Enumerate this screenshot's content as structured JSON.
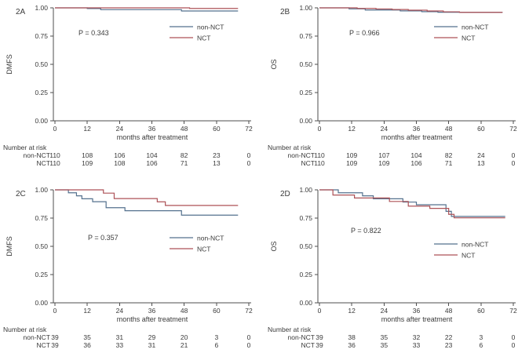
{
  "figure": {
    "background": "#ffffff",
    "text_color": "#3a3a3a",
    "axis_color": "#4d4d4d"
  },
  "colors": {
    "non_nct": "#54718e",
    "nct": "#ad5257"
  },
  "chart_data": [
    {
      "type": "line",
      "subtype": "kaplan-meier-step",
      "panel_label": "2A",
      "ylabel": "DMFS",
      "xlabel": "months after treatment",
      "p_value": "P = 0.343",
      "xlim": [
        0,
        72
      ],
      "ylim": [
        0.0,
        1.0
      ],
      "xticks": [
        0,
        12,
        24,
        36,
        48,
        60,
        72
      ],
      "ytick_labels": [
        "0.00",
        "0.25",
        "0.50",
        "0.75",
        "1.00"
      ],
      "grid": false,
      "legend_position": "upper-right",
      "legend": [
        {
          "name": "non-NCT",
          "color": "#54718e"
        },
        {
          "name": "NCT",
          "color": "#ad5257"
        }
      ],
      "series": [
        {
          "name": "non-NCT",
          "color": "#54718e",
          "points": [
            [
              0,
              1.0
            ],
            [
              12,
              0.994
            ],
            [
              17,
              0.984
            ],
            [
              47,
              0.972
            ],
            [
              68,
              0.972
            ]
          ]
        },
        {
          "name": "NCT",
          "color": "#ad5257",
          "points": [
            [
              0,
              1.0
            ],
            [
              50,
              0.995
            ],
            [
              68,
              0.995
            ]
          ]
        }
      ],
      "risk_table": {
        "title": "Number at risk",
        "timepoints": [
          0,
          12,
          24,
          36,
          48,
          60,
          72
        ],
        "rows": [
          {
            "name": "non-NCT",
            "values": [
              "110",
              "108",
              "106",
              "104",
              "82",
              "23",
              "0"
            ]
          },
          {
            "name": "NCT",
            "values": [
              "110",
              "109",
              "108",
              "106",
              "71",
              "13",
              "0"
            ]
          }
        ]
      }
    },
    {
      "type": "line",
      "subtype": "kaplan-meier-step",
      "panel_label": "2B",
      "ylabel": "OS",
      "xlabel": "months after treatment",
      "p_value": "P = 0.966",
      "xlim": [
        0,
        72
      ],
      "ylim": [
        0.0,
        1.0
      ],
      "xticks": [
        0,
        12,
        24,
        36,
        48,
        60,
        72
      ],
      "ytick_labels": [
        "0.00",
        "0.25",
        "0.50",
        "0.75",
        "1.00"
      ],
      "grid": false,
      "legend_position": "upper-right",
      "legend": [
        {
          "name": "non-NCT",
          "color": "#54718e"
        },
        {
          "name": "NCT",
          "color": "#ad5257"
        }
      ],
      "series": [
        {
          "name": "non-NCT",
          "color": "#54718e",
          "points": [
            [
              0,
              1.0
            ],
            [
              11,
              0.991
            ],
            [
              17,
              0.981
            ],
            [
              30,
              0.973
            ],
            [
              38,
              0.966
            ],
            [
              44,
              0.961
            ],
            [
              68,
              0.961
            ]
          ]
        },
        {
          "name": "NCT",
          "color": "#ad5257",
          "points": [
            [
              0,
              1.0
            ],
            [
              14,
              0.995
            ],
            [
              21,
              0.99
            ],
            [
              27,
              0.985
            ],
            [
              33,
              0.979
            ],
            [
              40,
              0.972
            ],
            [
              46,
              0.965
            ],
            [
              52,
              0.96
            ],
            [
              68,
              0.96
            ]
          ]
        }
      ],
      "risk_table": {
        "title": "Number at risk",
        "timepoints": [
          0,
          12,
          24,
          36,
          48,
          60,
          72
        ],
        "rows": [
          {
            "name": "non-NCT",
            "values": [
              "110",
              "109",
              "107",
              "104",
              "82",
              "24",
              "0"
            ]
          },
          {
            "name": "NCT",
            "values": [
              "110",
              "109",
              "109",
              "106",
              "71",
              "13",
              "0"
            ]
          }
        ]
      }
    },
    {
      "type": "line",
      "subtype": "kaplan-meier-step",
      "panel_label": "2C",
      "ylabel": "DMFS",
      "xlabel": "months after treatment",
      "p_value": "P = 0.357",
      "xlim": [
        0,
        72
      ],
      "ylim": [
        0.0,
        1.0
      ],
      "xticks": [
        0,
        12,
        24,
        36,
        48,
        60,
        72
      ],
      "ytick_labels": [
        "0.00",
        "0.25",
        "0.50",
        "0.75",
        "1.00"
      ],
      "grid": false,
      "legend_position": "middle-right",
      "legend": [
        {
          "name": "non-NCT",
          "color": "#54718e"
        },
        {
          "name": "NCT",
          "color": "#ad5257"
        }
      ],
      "series": [
        {
          "name": "non-NCT",
          "color": "#54718e",
          "points": [
            [
              0,
              1.0
            ],
            [
              5,
              0.974
            ],
            [
              8,
              0.947
            ],
            [
              10,
              0.921
            ],
            [
              14,
              0.895
            ],
            [
              19,
              0.842
            ],
            [
              26,
              0.815
            ],
            [
              47,
              0.776
            ],
            [
              68,
              0.776
            ]
          ]
        },
        {
          "name": "NCT",
          "color": "#ad5257",
          "points": [
            [
              0,
              1.0
            ],
            [
              18,
              0.971
            ],
            [
              22,
              0.923
            ],
            [
              38,
              0.894
            ],
            [
              41,
              0.862
            ],
            [
              68,
              0.862
            ]
          ]
        }
      ],
      "risk_table": {
        "title": "Number at risk",
        "timepoints": [
          0,
          12,
          24,
          36,
          48,
          60,
          72
        ],
        "rows": [
          {
            "name": "non-NCT",
            "values": [
              "39",
              "35",
              "31",
              "29",
              "20",
              "3",
              "0"
            ]
          },
          {
            "name": "NCT",
            "values": [
              "39",
              "36",
              "33",
              "31",
              "21",
              "6",
              "0"
            ]
          }
        ]
      }
    },
    {
      "type": "line",
      "subtype": "kaplan-meier-step",
      "panel_label": "2D",
      "ylabel": "OS",
      "xlabel": "months after treatment",
      "p_value": "P = 0.822",
      "xlim": [
        0,
        72
      ],
      "ylim": [
        0.0,
        1.0
      ],
      "xticks": [
        0,
        12,
        24,
        36,
        48,
        60,
        72
      ],
      "ytick_labels": [
        "0.00",
        "0.25",
        "0.50",
        "0.75",
        "1.00"
      ],
      "grid": false,
      "legend_position": "middle-right",
      "legend": [
        {
          "name": "non-NCT",
          "color": "#54718e"
        },
        {
          "name": "NCT",
          "color": "#ad5257"
        }
      ],
      "series": [
        {
          "name": "non-NCT",
          "color": "#54718e",
          "points": [
            [
              0,
              1.0
            ],
            [
              7,
              0.974
            ],
            [
              16,
              0.947
            ],
            [
              20,
              0.921
            ],
            [
              31,
              0.892
            ],
            [
              36,
              0.868
            ],
            [
              47,
              0.81
            ],
            [
              49,
              0.765
            ],
            [
              69,
              0.765
            ]
          ]
        },
        {
          "name": "NCT",
          "color": "#ad5257",
          "points": [
            [
              0,
              1.0
            ],
            [
              5,
              0.954
            ],
            [
              13,
              0.928
            ],
            [
              26,
              0.897
            ],
            [
              33,
              0.856
            ],
            [
              41,
              0.836
            ],
            [
              48,
              0.783
            ],
            [
              50,
              0.752
            ],
            [
              69,
              0.752
            ]
          ]
        }
      ],
      "risk_table": {
        "title": "Number at risk",
        "timepoints": [
          0,
          12,
          24,
          36,
          48,
          60,
          72
        ],
        "rows": [
          {
            "name": "non-NCT",
            "values": [
              "39",
              "38",
              "35",
              "32",
              "22",
              "3",
              "0"
            ]
          },
          {
            "name": "NCT",
            "values": [
              "39",
              "36",
              "35",
              "33",
              "23",
              "6",
              "0"
            ]
          }
        ]
      }
    }
  ]
}
